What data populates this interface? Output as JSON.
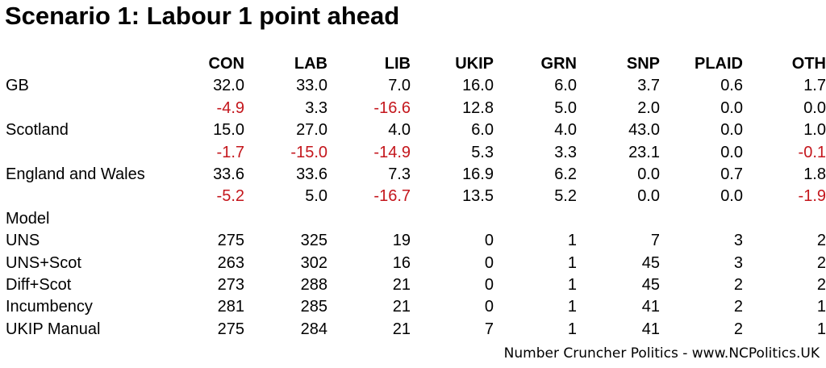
{
  "colors": {
    "negative": "#c4161c",
    "text": "#000000",
    "background": "#ffffff"
  },
  "footer": "Number Cruncher Politics - www.NCPolitics.UK",
  "chart_data": {
    "type": "table",
    "title": "Scenario 1: Labour 1 point ahead",
    "columns": [
      "CON",
      "LAB",
      "LIB",
      "UKIP",
      "GRN",
      "SNP",
      "PLAID",
      "OTH"
    ],
    "vote_share": [
      {
        "region": "GB",
        "share": [
          32.0,
          33.0,
          7.0,
          16.0,
          6.0,
          3.7,
          0.6,
          1.7
        ],
        "change": [
          -4.9,
          3.3,
          -16.6,
          12.8,
          5.0,
          2.0,
          0.0,
          0.0
        ]
      },
      {
        "region": "Scotland",
        "share": [
          15.0,
          27.0,
          4.0,
          6.0,
          4.0,
          43.0,
          0.0,
          1.0
        ],
        "change": [
          -1.7,
          -15.0,
          -14.9,
          5.3,
          3.3,
          23.1,
          0.0,
          -0.1
        ]
      },
      {
        "region": "England and Wales",
        "share": [
          33.6,
          33.6,
          7.3,
          16.9,
          6.2,
          0.0,
          0.7,
          1.8
        ],
        "change": [
          -5.2,
          5.0,
          -16.7,
          13.5,
          5.2,
          0.0,
          0.0,
          -1.9
        ]
      }
    ],
    "model_heading": "Model",
    "models": [
      {
        "name": "UNS",
        "seats": [
          275,
          325,
          19,
          0,
          1,
          7,
          3,
          2
        ]
      },
      {
        "name": "UNS+Scot",
        "seats": [
          263,
          302,
          16,
          0,
          1,
          45,
          3,
          2
        ]
      },
      {
        "name": "Diff+Scot",
        "seats": [
          273,
          288,
          21,
          0,
          1,
          45,
          2,
          2
        ]
      },
      {
        "name": "Incumbency",
        "seats": [
          281,
          285,
          21,
          0,
          1,
          41,
          2,
          1
        ]
      },
      {
        "name": "UKIP Manual",
        "seats": [
          275,
          284,
          21,
          7,
          1,
          41,
          2,
          1
        ]
      }
    ]
  }
}
